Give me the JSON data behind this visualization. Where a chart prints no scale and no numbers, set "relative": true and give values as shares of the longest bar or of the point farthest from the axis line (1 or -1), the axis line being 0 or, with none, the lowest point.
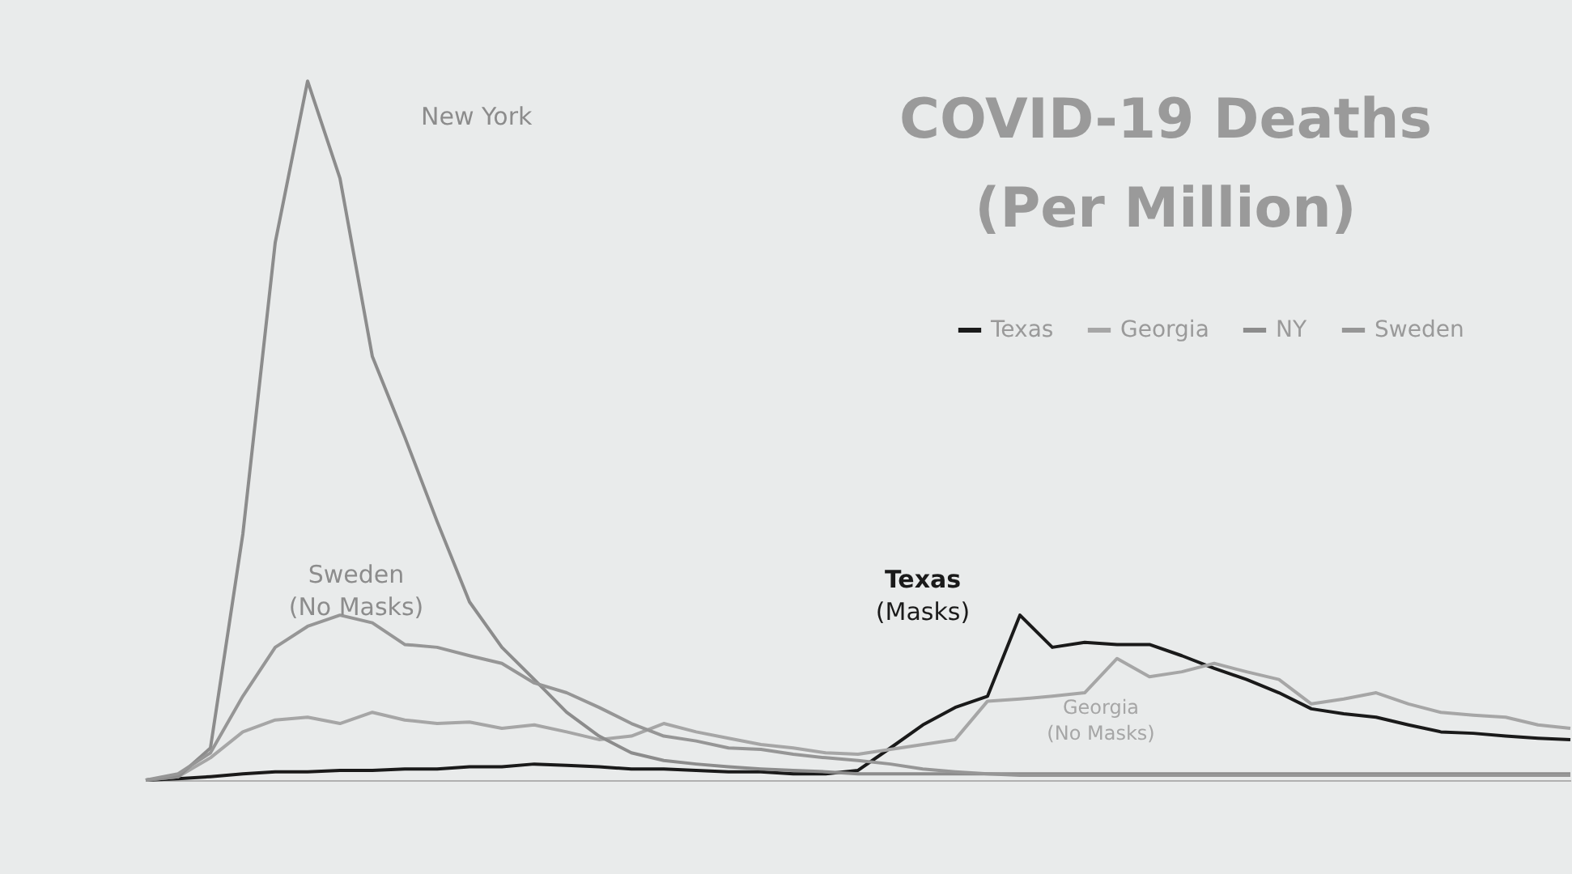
{
  "chart_data": {
    "type": "line",
    "title": "COVID-19 Deaths\n(Per Million)",
    "relative": true,
    "legend": "top right",
    "grid": false,
    "marker": "none",
    "line_style": "solid",
    "categories": [
      null,
      null,
      null,
      null,
      null,
      null,
      null,
      null,
      null,
      null,
      null,
      null,
      null,
      null,
      null,
      null,
      null,
      null,
      null,
      null,
      null,
      null,
      null,
      null,
      null,
      null,
      null,
      null,
      null,
      null,
      null,
      null,
      null,
      null,
      null,
      null,
      null,
      null,
      null,
      null,
      null,
      null,
      null,
      null,
      null
    ],
    "series": [
      {
        "name": "Texas",
        "color": "#1a1a1a",
        "values": [
          0,
          0.002,
          0.005,
          0.009,
          0.012,
          0.012,
          0.014,
          0.014,
          0.016,
          0.016,
          0.019,
          0.019,
          0.023,
          0.021,
          0.019,
          0.016,
          0.016,
          0.014,
          0.012,
          0.012,
          0.009,
          0.009,
          0.014,
          0.046,
          0.079,
          0.104,
          0.12,
          0.236,
          0.19,
          0.197,
          0.194,
          0.194,
          0.178,
          0.16,
          0.144,
          0.125,
          0.102,
          0.095,
          0.09,
          0.079,
          0.069,
          0.067,
          0.063,
          0.06,
          0.058
        ]
      },
      {
        "name": "Georgia",
        "color": "#a6a6a6",
        "values": [
          0,
          0.005,
          0.032,
          0.069,
          0.086,
          0.09,
          0.081,
          0.097,
          0.086,
          0.081,
          0.083,
          0.074,
          0.079,
          0.069,
          0.058,
          0.063,
          0.081,
          0.069,
          0.06,
          0.051,
          0.046,
          0.039,
          0.037,
          0.044,
          0.051,
          0.058,
          0.113,
          0.116,
          0.12,
          0.125,
          0.174,
          0.148,
          0.155,
          0.167,
          0.155,
          0.144,
          0.109,
          0.116,
          0.125,
          0.109,
          0.097,
          0.093,
          0.09,
          0.079,
          0.074
        ]
      },
      {
        "name": "NY",
        "color": "#8c8c8c",
        "values": [
          0,
          0.005,
          0.046,
          0.352,
          0.769,
          1,
          0.861,
          0.606,
          0.491,
          0.37,
          0.255,
          0.19,
          0.144,
          0.097,
          0.063,
          0.039,
          0.028,
          0.023,
          0.019,
          0.016,
          0.014,
          0.012,
          0.009,
          0.009,
          0.009,
          0.009,
          0.009,
          0.009,
          0.009,
          0.009,
          0.009,
          0.009,
          0.009,
          0.009,
          0.009,
          0.009,
          0.009,
          0.009,
          0.009,
          0.009,
          0.009,
          0.009,
          0.009,
          0.009,
          0.009
        ]
      },
      {
        "name": "Sweden",
        "color": "#969696",
        "values": [
          0,
          0.009,
          0.039,
          0.12,
          0.19,
          0.22,
          0.236,
          0.225,
          0.194,
          0.19,
          0.178,
          0.167,
          0.139,
          0.125,
          0.104,
          0.081,
          0.063,
          0.056,
          0.046,
          0.044,
          0.037,
          0.032,
          0.028,
          0.023,
          0.016,
          0.012,
          0.009,
          0.007,
          0.007,
          0.007,
          0.007,
          0.007,
          0.007,
          0.007,
          0.007,
          0.007,
          0.007,
          0.007,
          0.007,
          0.007,
          0.007,
          0.007,
          0.007,
          0.007,
          0.007
        ]
      }
    ],
    "annotations": [
      "New York",
      "Sweden\n(No Masks)",
      "Texas\n(Masks)",
      "Georgia\n(No Masks)"
    ]
  }
}
